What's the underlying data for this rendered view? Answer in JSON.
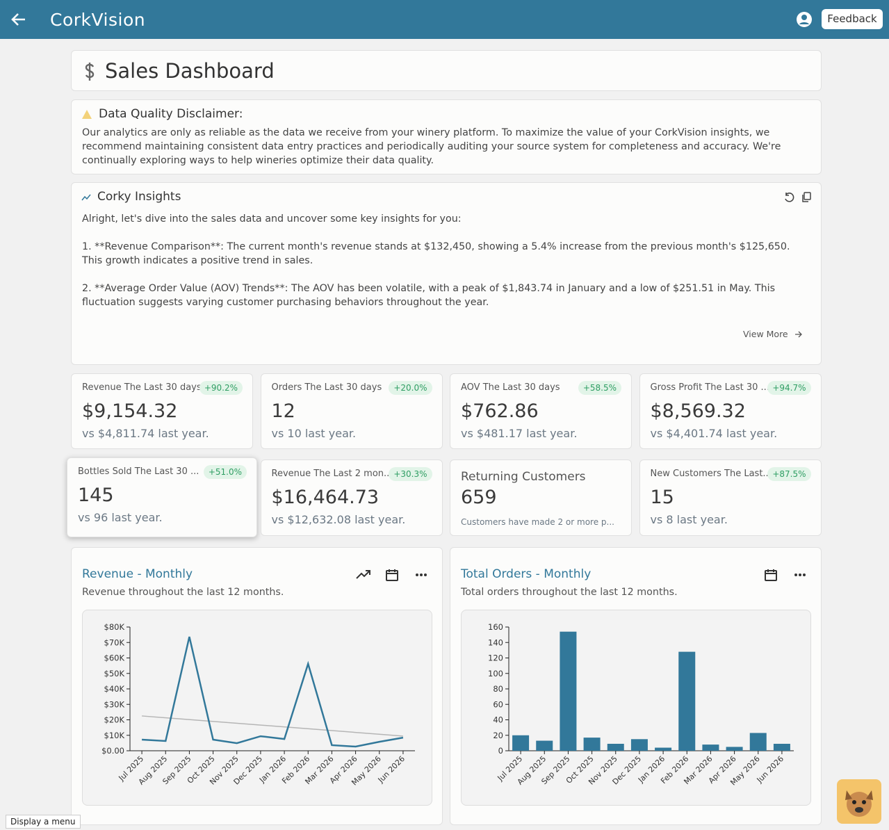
{
  "header": {
    "logo": "CorkVision",
    "feedback": "Feedback"
  },
  "page_title": "Sales Dashboard",
  "disclaimer": {
    "title": "Data Quality Disclaimer:",
    "text": "Our analytics are only as reliable as the data we receive from your winery platform. To maximize the value of your CorkVision insights, we recommend maintaining consistent data entry practices and periodically auditing your source system for completeness and accuracy. We're continually exploring ways to help wineries optimize their data quality."
  },
  "insights": {
    "title": "Corky Insights",
    "paragraphs": [
      "Alright, let's dive into the sales data and uncover some key insights for you:",
      "1. **Revenue Comparison**: The current month's revenue stands at $132,450, showing a 5.4% increase from the previous month's $125,650. This growth indicates a positive trend in sales.",
      "2. **Average Order Value (AOV) Trends**: The AOV has been volatile, with a peak of $1,843.74 in January and a low of $251.51 in May. This fluctuation suggests varying customer purchasing behaviors throughout the year."
    ],
    "view_more": "View More"
  },
  "kpis": [
    {
      "title": "Revenue The Last 30 days",
      "badge": "+90.2%",
      "value": "$9,154.32",
      "comparison": "vs $4,811.74 last year."
    },
    {
      "title": "Orders The Last 30 days",
      "badge": "+20.0%",
      "value": "12",
      "comparison": "vs 10 last year."
    },
    {
      "title": "AOV The Last 30 days",
      "badge": "+58.5%",
      "value": "$762.86",
      "comparison": "vs $481.17 last year."
    },
    {
      "title": "Gross Profit The Last 30 ...",
      "badge": "+94.7%",
      "value": "$8,569.32",
      "comparison": "vs $4,401.74 last year."
    },
    {
      "title": "Bottles Sold The Last 30 ...",
      "badge": "+51.0%",
      "value": "145",
      "comparison": "vs 96 last year."
    },
    {
      "title": "Revenue The Last 2 mon...",
      "badge": "+30.3%",
      "value": "$16,464.73",
      "comparison": "vs $12,632.08 last year."
    },
    {
      "title": "Returning Customers",
      "value": "659",
      "comparison": "Customers have made 2 or more p..."
    },
    {
      "title": "New Customers The Last...",
      "badge": "+87.5%",
      "value": "15",
      "comparison": "vs 8 last year."
    }
  ],
  "charts": [
    {
      "type": "line",
      "title": "Revenue - Monthly",
      "subtitle": "Revenue throughout the last 12 months.",
      "categories": [
        "Jul 2025",
        "Aug 2025",
        "Sep 2025",
        "Oct 2025",
        "Nov 2025",
        "Dec 2025",
        "Jan 2026",
        "Feb 2026",
        "Mar 2026",
        "Apr 2026",
        "May 2026",
        "Jun 2026"
      ],
      "values": [
        7200,
        6300,
        73700,
        7200,
        4900,
        9400,
        7600,
        56200,
        3600,
        2700,
        5800,
        8500
      ],
      "color": "#32789a",
      "trendline": {
        "color": "#b5b5b5",
        "start": 22500,
        "end": 9500
      },
      "ylim": [
        0,
        80000
      ],
      "yticks": [
        {
          "value": 0,
          "label": "$0.00"
        },
        {
          "value": 10000,
          "label": "$10K"
        },
        {
          "value": 20000,
          "label": "$20K"
        },
        {
          "value": 30000,
          "label": "$30K"
        },
        {
          "value": 40000,
          "label": "$40K"
        },
        {
          "value": 50000,
          "label": "$50K"
        },
        {
          "value": 60000,
          "label": "$60K"
        },
        {
          "value": 70000,
          "label": "$70K"
        },
        {
          "value": 80000,
          "label": "$80K"
        }
      ]
    },
    {
      "type": "bar",
      "title": "Total Orders - Monthly",
      "subtitle": "Total orders throughout the last 12 months.",
      "categories": [
        "Jul 2025",
        "Aug 2025",
        "Sep 2025",
        "Oct 2025",
        "Nov 2025",
        "Dec 2025",
        "Jan 2026",
        "Feb 2026",
        "Mar 2026",
        "Apr 2026",
        "May 2026",
        "Jun 2026"
      ],
      "values": [
        20,
        13,
        154,
        17,
        9,
        15,
        4,
        128,
        8,
        5,
        23,
        9
      ],
      "color": "#32789a",
      "ylim": [
        0,
        160
      ],
      "yticks": [
        0,
        20,
        40,
        60,
        80,
        100,
        120,
        140,
        160
      ]
    }
  ],
  "tooltip": "Display a menu"
}
